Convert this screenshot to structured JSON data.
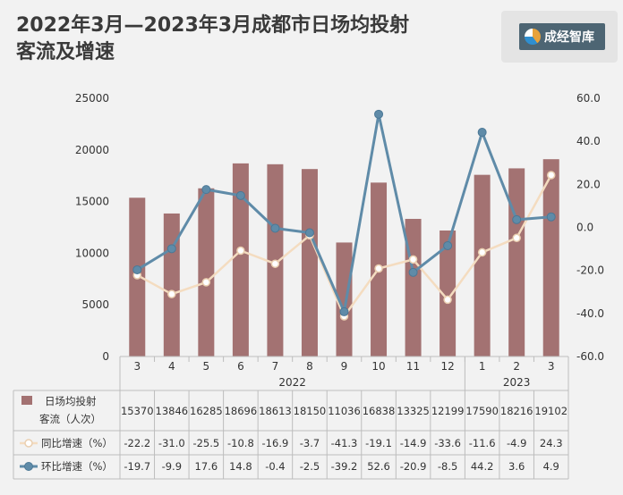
{
  "title_line1": "2022年3月—2023年3月成都市日场均投射",
  "title_line2": "客流及增速",
  "logo": {
    "text": "成经智库"
  },
  "chart_data": {
    "type": "bar",
    "categories": [
      "3",
      "4",
      "5",
      "6",
      "7",
      "8",
      "9",
      "10",
      "11",
      "12",
      "1",
      "2",
      "3"
    ],
    "year_groups": [
      {
        "label": "2022",
        "from": 0,
        "to": 9
      },
      {
        "label": "2023",
        "from": 10,
        "to": 12
      }
    ],
    "series": [
      {
        "name": "日场均投射客流（人次）",
        "type": "bar",
        "axis": "left",
        "color": "#a37272",
        "values": [
          15370,
          13846,
          16285,
          18696,
          18613,
          18150,
          11036,
          16838,
          13325,
          12199,
          17590,
          18216,
          19102
        ]
      },
      {
        "name": "同比增速（%）",
        "type": "line",
        "axis": "right",
        "color": "#f4dcc0",
        "values": [
          -22.2,
          -31.0,
          -25.5,
          -10.8,
          -16.9,
          -3.7,
          -41.3,
          -19.1,
          -14.9,
          -33.6,
          -11.6,
          -4.9,
          24.3
        ]
      },
      {
        "name": "环比增速（%）",
        "type": "line",
        "axis": "right",
        "color": "#5f8ba8",
        "values": [
          -19.7,
          -9.9,
          17.6,
          14.8,
          -0.4,
          -2.5,
          -39.2,
          52.6,
          -20.9,
          -8.5,
          44.2,
          3.6,
          4.9
        ]
      }
    ],
    "y_left": {
      "min": 0,
      "max": 25000,
      "ticks": [
        "0",
        "5000",
        "10000",
        "15000",
        "20000",
        "25000"
      ]
    },
    "y_right": {
      "min": -60,
      "max": 60,
      "ticks": [
        "-60.0",
        "-40.0",
        "-20.0",
        "0.0",
        "20.0",
        "40.0",
        "60.0"
      ]
    },
    "grid": false,
    "legend": "data-table",
    "table_labels": [
      "日场均投射",
      "客流（人次）"
    ]
  }
}
